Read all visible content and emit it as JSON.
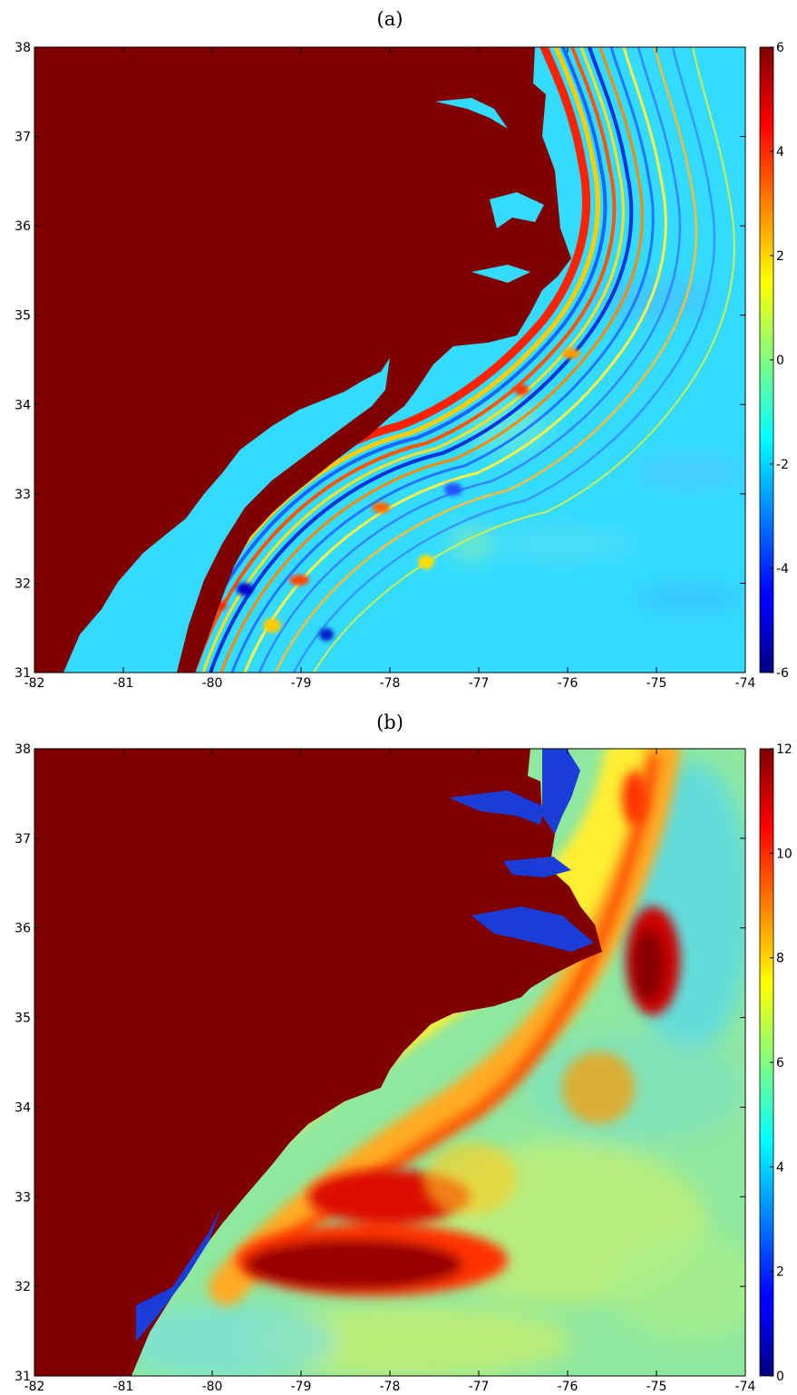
{
  "chart_data": [
    {
      "type": "heatmap",
      "title": "(a)",
      "xlim": [
        -82,
        -74
      ],
      "ylim": [
        31,
        38
      ],
      "x_ticks": [
        "-82",
        "-81",
        "-80",
        "-79",
        "-78",
        "-77",
        "-76",
        "-75",
        "-74"
      ],
      "y_ticks": [
        "31",
        "32",
        "33",
        "34",
        "35",
        "36",
        "37",
        "38"
      ],
      "colorbar": {
        "range": [
          -6,
          6
        ],
        "ticks": [
          "-6",
          "-4",
          "-2",
          "0",
          "2",
          "4",
          "6"
        ],
        "colormap": "jet"
      },
      "colors": {
        "land": "#800000",
        "background_water": "#33dbff"
      }
    },
    {
      "type": "heatmap",
      "title": "(b)",
      "xlim": [
        -82,
        -74
      ],
      "ylim": [
        31,
        38
      ],
      "x_ticks": [
        "-82",
        "-81",
        "-80",
        "-79",
        "-78",
        "-77",
        "-76",
        "-75",
        "-74"
      ],
      "y_ticks": [
        "31",
        "32",
        "33",
        "34",
        "35",
        "36",
        "37",
        "38"
      ],
      "colorbar": {
        "range": [
          0,
          12
        ],
        "ticks": [
          "0",
          "2",
          "4",
          "6",
          "8",
          "10",
          "12"
        ],
        "colormap": "jet"
      },
      "colors": {
        "land": "#800000",
        "background_water": "#8fe8a0"
      }
    }
  ]
}
